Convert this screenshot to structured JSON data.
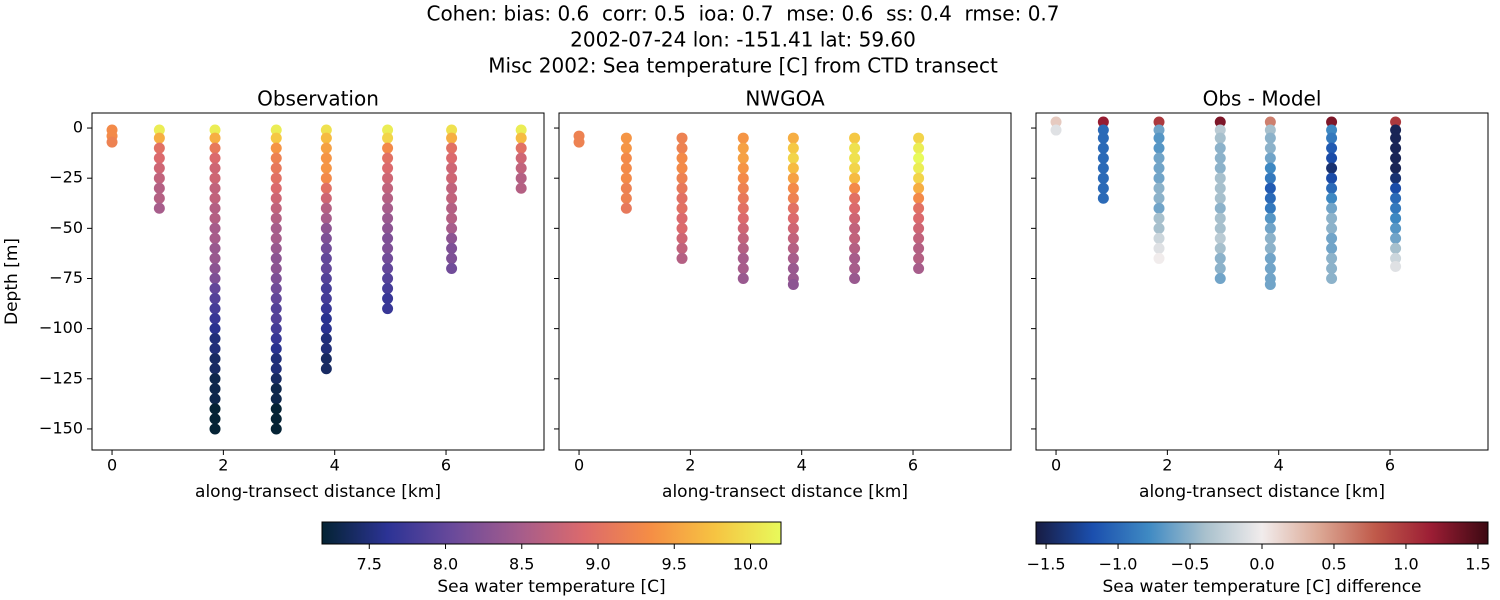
{
  "suptitle": [
    "Cohen: bias: 0.6  corr: 0.5  ioa: 0.7  mse: 0.6  ss: 0.4  rmse: 0.7",
    "2002-07-24 lon: -151.41 lat: 59.60",
    "Misc 2002: Sea temperature [C] from CTD transect"
  ],
  "chart_data": [
    {
      "type": "scatter",
      "title": "Observation",
      "xlabel": "along-transect distance [km]",
      "ylabel": "Depth [m]",
      "xlim": [
        -0.36,
        7.76
      ],
      "ylim": [
        -160.5,
        7.5
      ],
      "xticks": [
        0,
        2,
        4,
        6
      ],
      "yticks": [
        {
          "value": 0,
          "label": "0"
        },
        {
          "value": -25,
          "label": "−25"
        },
        {
          "value": -50,
          "label": "−50"
        },
        {
          "value": -75,
          "label": "−75"
        },
        {
          "value": -100,
          "label": "−100"
        },
        {
          "value": -125,
          "label": "−125"
        },
        {
          "value": -150,
          "label": "−150"
        }
      ],
      "clim": [
        7.19,
        10.2
      ],
      "colormap": [
        "#042333",
        "#2c3395",
        "#6a4a9b",
        "#a45c8c",
        "#dc6a6c",
        "#f58d45",
        "#f6c442",
        "#e8fa5b"
      ],
      "colorbar": {
        "label": "Sea water temperature [C]",
        "ticks": [
          {
            "value": 7.5,
            "label": "7.5"
          },
          {
            "value": 8,
            "label": "8.0"
          },
          {
            "value": 8.5,
            "label": "8.5"
          },
          {
            "value": 9,
            "label": "9.0"
          },
          {
            "value": 9.5,
            "label": "9.5"
          },
          {
            "value": 10,
            "label": "10.0"
          }
        ]
      },
      "profiles": [
        {
          "x": 0,
          "depth": [
            -1,
            -4,
            -7
          ],
          "values": [
            9.3,
            9.3,
            9.2
          ]
        },
        {
          "x": 0.85,
          "depth": [
            -1,
            -5,
            -10,
            -15,
            -20,
            -25,
            -30,
            -35,
            -40
          ],
          "values": [
            10.1,
            9.6,
            9.0,
            8.9,
            8.8,
            8.7,
            8.6,
            8.6,
            8.5
          ]
        },
        {
          "x": 1.85,
          "depth": [
            -1,
            -5,
            -10,
            -15,
            -20,
            -25,
            -30,
            -35,
            -40,
            -45,
            -50,
            -55,
            -60,
            -65,
            -70,
            -75,
            -80,
            -85,
            -90,
            -95,
            -100,
            -105,
            -110,
            -115,
            -120,
            -125,
            -130,
            -135,
            -140,
            -145,
            -150
          ],
          "values": [
            10.1,
            9.6,
            9.1,
            8.9,
            8.8,
            8.8,
            8.7,
            8.7,
            8.6,
            8.6,
            8.5,
            8.5,
            8.4,
            8.4,
            8.3,
            8.2,
            8.0,
            7.9,
            7.8,
            7.7,
            7.6,
            7.5,
            7.5,
            7.4,
            7.4,
            7.3,
            7.3,
            7.3,
            7.2,
            7.2,
            7.2
          ]
        },
        {
          "x": 2.95,
          "depth": [
            -1,
            -5,
            -10,
            -15,
            -20,
            -25,
            -30,
            -35,
            -40,
            -45,
            -50,
            -55,
            -60,
            -65,
            -70,
            -75,
            -80,
            -85,
            -90,
            -95,
            -100,
            -105,
            -110,
            -115,
            -120,
            -125,
            -130,
            -135,
            -140,
            -145,
            -150
          ],
          "values": [
            10.1,
            9.8,
            9.4,
            9.2,
            9.1,
            9.0,
            8.9,
            8.8,
            8.7,
            8.6,
            8.5,
            8.5,
            8.4,
            8.3,
            8.3,
            8.2,
            8.1,
            8.0,
            7.9,
            7.9,
            7.8,
            7.7,
            7.6,
            7.5,
            7.5,
            7.4,
            7.3,
            7.3,
            7.2,
            7.2,
            7.2
          ]
        },
        {
          "x": 3.85,
          "depth": [
            -1,
            -5,
            -10,
            -15,
            -20,
            -25,
            -30,
            -35,
            -40,
            -45,
            -50,
            -55,
            -60,
            -65,
            -70,
            -75,
            -80,
            -85,
            -90,
            -95,
            -100,
            -105,
            -110,
            -115,
            -120
          ],
          "values": [
            10.0,
            9.7,
            9.5,
            9.4,
            9.4,
            9.3,
            9.0,
            8.8,
            8.6,
            8.5,
            8.3,
            8.2,
            8.1,
            8.0,
            8.0,
            7.9,
            7.8,
            7.8,
            7.7,
            7.6,
            7.6,
            7.5,
            7.5,
            7.4,
            7.4
          ]
        },
        {
          "x": 4.95,
          "depth": [
            -1,
            -5,
            -10,
            -15,
            -20,
            -25,
            -30,
            -35,
            -40,
            -45,
            -50,
            -55,
            -60,
            -65,
            -70,
            -75,
            -80,
            -85,
            -90
          ],
          "values": [
            10.1,
            9.9,
            9.3,
            9.0,
            8.9,
            8.8,
            8.7,
            8.6,
            8.5,
            8.4,
            8.3,
            8.2,
            8.2,
            8.1,
            8.0,
            7.9,
            7.8,
            7.7,
            7.7
          ]
        },
        {
          "x": 6.1,
          "depth": [
            -1,
            -5,
            -10,
            -15,
            -20,
            -25,
            -30,
            -35,
            -40,
            -45,
            -50,
            -55,
            -60,
            -65,
            -70
          ],
          "values": [
            10.0,
            9.6,
            9.0,
            8.9,
            8.8,
            8.8,
            8.7,
            8.7,
            8.6,
            8.6,
            8.5,
            8.3,
            8.2,
            8.2,
            8.1
          ]
        },
        {
          "x": 7.35,
          "depth": [
            -1,
            -5,
            -10,
            -15,
            -20,
            -25,
            -30
          ],
          "values": [
            10.1,
            9.7,
            9.0,
            8.8,
            8.7,
            8.6,
            8.6
          ]
        }
      ]
    },
    {
      "type": "scatter",
      "title": "NWGOA",
      "xlabel": "along-transect distance [km]",
      "sharey": true,
      "xlim": [
        -0.36,
        7.76
      ],
      "ylim": [
        -160.5,
        7.5
      ],
      "xticks": [
        0,
        2,
        4,
        6
      ],
      "yticks": [
        0,
        -25,
        -50,
        -75,
        -100,
        -125,
        -150
      ],
      "clim": [
        7.19,
        10.2
      ],
      "colormap": [
        "#042333",
        "#2c3395",
        "#6a4a9b",
        "#a45c8c",
        "#dc6a6c",
        "#f58d45",
        "#f6c442",
        "#e8fa5b"
      ],
      "profiles": [
        {
          "x": 0,
          "depth": [
            -4,
            -7
          ],
          "values": [
            9.2,
            9.2
          ]
        },
        {
          "x": 0.85,
          "depth": [
            -5,
            -10,
            -15,
            -20,
            -25,
            -30,
            -35,
            -40
          ],
          "values": [
            9.4,
            9.4,
            9.3,
            9.3,
            9.3,
            9.2,
            9.2,
            9.1
          ]
        },
        {
          "x": 1.85,
          "depth": [
            -5,
            -10,
            -15,
            -20,
            -25,
            -30,
            -35,
            -40,
            -45,
            -50,
            -55,
            -60,
            -65
          ],
          "values": [
            9.2,
            9.2,
            9.3,
            9.3,
            9.2,
            9.1,
            9.0,
            9.0,
            8.9,
            8.9,
            8.8,
            8.7,
            8.6
          ]
        },
        {
          "x": 2.95,
          "depth": [
            -5,
            -10,
            -15,
            -20,
            -25,
            -30,
            -35,
            -40,
            -45,
            -50,
            -55,
            -60,
            -65,
            -70,
            -75
          ],
          "values": [
            9.4,
            9.5,
            9.5,
            9.4,
            9.3,
            9.2,
            9.1,
            9.0,
            8.9,
            8.8,
            8.7,
            8.6,
            8.5,
            8.5,
            8.4
          ]
        },
        {
          "x": 3.85,
          "depth": [
            -5,
            -10,
            -15,
            -20,
            -25,
            -30,
            -35,
            -40,
            -45,
            -50,
            -55,
            -60,
            -65,
            -70,
            -75,
            -78
          ],
          "values": [
            9.6,
            9.8,
            9.9,
            9.7,
            9.5,
            9.3,
            9.2,
            9.0,
            8.9,
            8.8,
            8.7,
            8.6,
            8.5,
            8.4,
            8.4,
            8.3
          ]
        },
        {
          "x": 4.95,
          "depth": [
            -5,
            -10,
            -15,
            -20,
            -25,
            -30,
            -35,
            -40,
            -45,
            -50,
            -55,
            -60,
            -65,
            -70,
            -75
          ],
          "values": [
            9.8,
            10.0,
            10.0,
            9.9,
            9.7,
            9.3,
            9.0,
            8.9,
            8.8,
            8.7,
            8.7,
            8.6,
            8.5,
            8.5,
            8.4
          ]
        },
        {
          "x": 6.1,
          "depth": [
            -5,
            -10,
            -15,
            -20,
            -25,
            -30,
            -35,
            -40,
            -45,
            -50,
            -55,
            -60,
            -65,
            -70
          ],
          "values": [
            9.9,
            10.1,
            10.2,
            10.1,
            9.9,
            9.6,
            9.3,
            9.0,
            8.9,
            8.8,
            8.7,
            8.6,
            8.6,
            8.5
          ]
        }
      ]
    },
    {
      "type": "scatter",
      "title": "Obs - Model",
      "xlabel": "along-transect distance [km]",
      "sharey": true,
      "xlim": [
        -0.36,
        7.76
      ],
      "ylim": [
        -160.5,
        7.5
      ],
      "xticks": [
        0,
        2,
        4,
        6
      ],
      "yticks": [
        0,
        -25,
        -50,
        -75,
        -100,
        -125,
        -150
      ],
      "clim": [
        -1.57,
        1.57
      ],
      "colormap": [
        "#181c43",
        "#1b4fae",
        "#3f8ac3",
        "#a9c1cd",
        "#f1ecec",
        "#dca996",
        "#c05a4a",
        "#9b1d34",
        "#3c0912"
      ],
      "colorbar": {
        "label": "Sea water temperature [C] difference",
        "ticks": [
          {
            "value": -1.5,
            "label": "−1.5"
          },
          {
            "value": -1,
            "label": "−1.0"
          },
          {
            "value": -0.5,
            "label": "−0.5"
          },
          {
            "value": 0,
            "label": "0.0"
          },
          {
            "value": 0.5,
            "label": "0.5"
          },
          {
            "value": 1,
            "label": "1.0"
          },
          {
            "value": 1.5,
            "label": "1.5"
          }
        ]
      },
      "profiles": [
        {
          "x": 0,
          "depth": [
            3,
            -1
          ],
          "values": [
            0.2,
            -0.1
          ]
        },
        {
          "x": 0.85,
          "depth": [
            3,
            -1,
            -5,
            -10,
            -15,
            -20,
            -25,
            -30,
            -35
          ],
          "values": [
            1.2,
            -1.0,
            -1.0,
            -1.0,
            -1.0,
            -1.0,
            -1.0,
            -1.0,
            -1.0
          ]
        },
        {
          "x": 1.85,
          "depth": [
            3,
            -1,
            -5,
            -10,
            -15,
            -20,
            -25,
            -30,
            -35,
            -40,
            -45,
            -50,
            -55,
            -60,
            -65
          ],
          "values": [
            1.0,
            -0.6,
            -0.7,
            -0.7,
            -0.6,
            -0.6,
            -0.6,
            -0.5,
            -0.5,
            -0.6,
            -0.4,
            -0.4,
            -0.2,
            -0.1,
            0.0
          ]
        },
        {
          "x": 2.95,
          "depth": [
            3,
            -1,
            -5,
            -10,
            -15,
            -20,
            -25,
            -30,
            -35,
            -40,
            -45,
            -50,
            -55,
            -60,
            -65,
            -70,
            -75
          ],
          "values": [
            1.3,
            -0.3,
            -0.4,
            -0.5,
            -0.5,
            -0.5,
            -0.4,
            -0.4,
            -0.4,
            -0.5,
            -0.4,
            -0.4,
            -0.3,
            -0.4,
            -0.5,
            -0.5,
            -0.6
          ]
        },
        {
          "x": 3.85,
          "depth": [
            3,
            -1,
            -5,
            -10,
            -15,
            -20,
            -25,
            -30,
            -35,
            -40,
            -45,
            -50,
            -55,
            -60,
            -65,
            -70,
            -75,
            -78
          ],
          "values": [
            0.6,
            -0.4,
            -0.5,
            -0.5,
            -0.6,
            -0.8,
            -0.9,
            -1.1,
            -1.0,
            -0.9,
            -0.7,
            -0.6,
            -0.5,
            -0.5,
            -0.6,
            -0.6,
            -0.6,
            -0.6
          ]
        },
        {
          "x": 4.95,
          "depth": [
            3,
            -1,
            -5,
            -10,
            -15,
            -20,
            -25,
            -30,
            -35,
            -40,
            -45,
            -50,
            -55,
            -60,
            -65,
            -70,
            -75
          ],
          "values": [
            1.3,
            -0.8,
            -0.9,
            -1.1,
            -1.2,
            -1.4,
            -1.2,
            -1.0,
            -0.8,
            -0.6,
            -0.5,
            -0.5,
            -0.6,
            -0.6,
            -0.5,
            -0.5,
            -0.5
          ]
        },
        {
          "x": 6.1,
          "depth": [
            3,
            -1,
            -5,
            -10,
            -15,
            -20,
            -25,
            -30,
            -35,
            -40,
            -45,
            -50,
            -55,
            -60,
            -65,
            -69
          ],
          "values": [
            1.0,
            -1.5,
            -1.5,
            -1.5,
            -1.5,
            -1.5,
            -1.4,
            -1.2,
            -1.0,
            -0.9,
            -0.8,
            -0.7,
            -0.6,
            -0.4,
            -0.2,
            -0.1
          ]
        }
      ]
    }
  ]
}
